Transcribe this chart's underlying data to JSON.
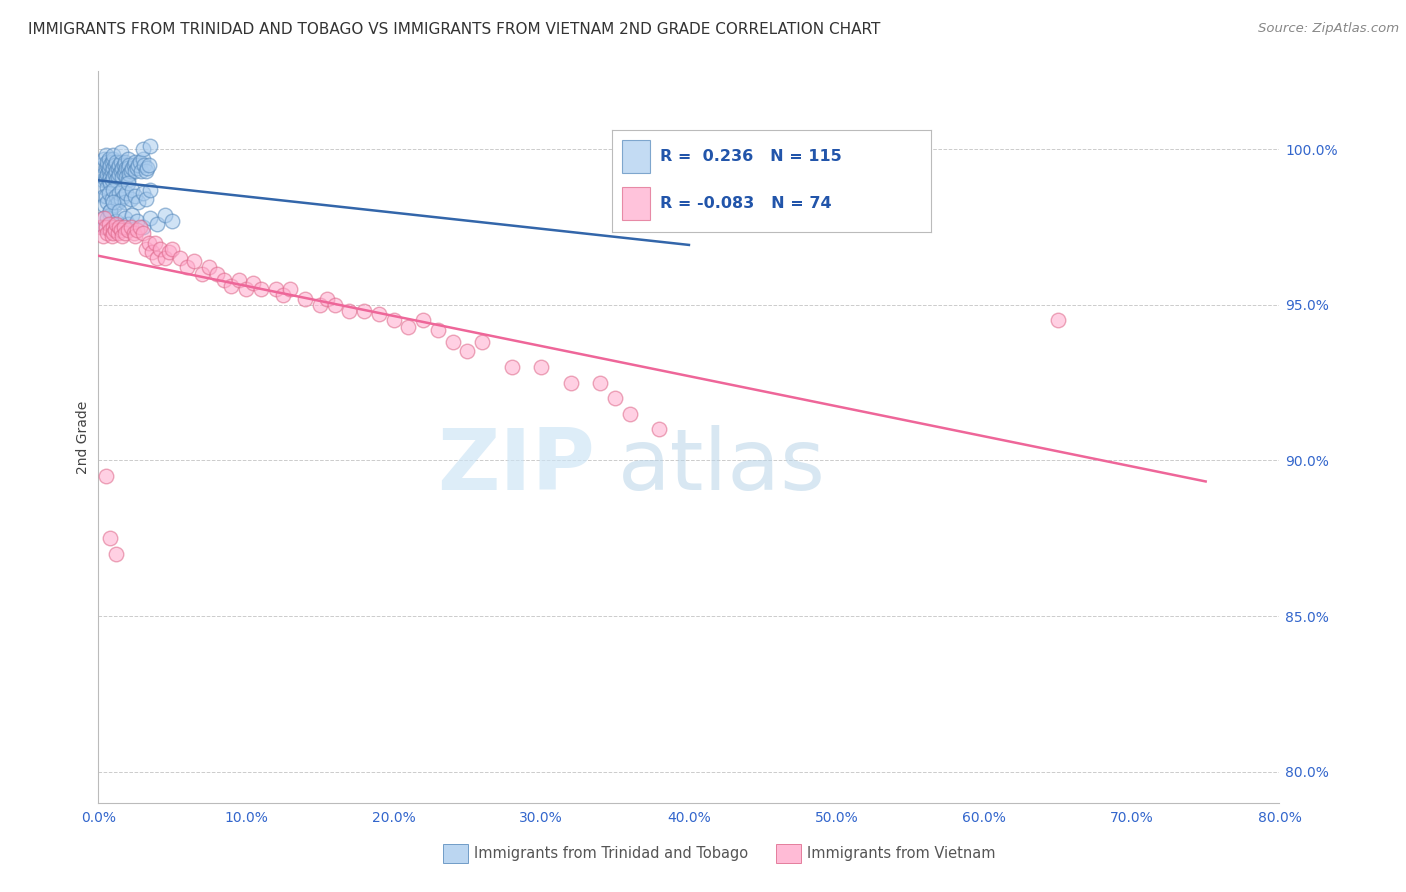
{
  "title": "IMMIGRANTS FROM TRINIDAD AND TOBAGO VS IMMIGRANTS FROM VIETNAM 2ND GRADE CORRELATION CHART",
  "source": "Source: ZipAtlas.com",
  "ylabel": "2nd Grade",
  "y_ticks": [
    80.0,
    85.0,
    90.0,
    95.0,
    100.0
  ],
  "x_ticks": [
    0,
    10,
    20,
    30,
    40,
    50,
    60,
    70,
    80
  ],
  "x_range": [
    0.0,
    80.0
  ],
  "y_range": [
    79.0,
    102.5
  ],
  "legend_blue_r": "0.236",
  "legend_blue_n": "115",
  "legend_pink_r": "-0.083",
  "legend_pink_n": "74",
  "blue_color": "#aaccee",
  "pink_color": "#ffaacc",
  "blue_edge_color": "#5588bb",
  "pink_edge_color": "#dd6688",
  "blue_line_color": "#3366aa",
  "pink_line_color": "#ee6699",
  "watermark_zip": "ZIP",
  "watermark_atlas": "atlas",
  "blue_scatter_x": [
    0.2,
    0.3,
    0.3,
    0.4,
    0.4,
    0.4,
    0.5,
    0.5,
    0.5,
    0.5,
    0.6,
    0.6,
    0.6,
    0.6,
    0.7,
    0.7,
    0.7,
    0.7,
    0.8,
    0.8,
    0.8,
    0.9,
    0.9,
    0.9,
    1.0,
    1.0,
    1.0,
    1.0,
    1.1,
    1.1,
    1.2,
    1.2,
    1.2,
    1.3,
    1.3,
    1.4,
    1.4,
    1.5,
    1.5,
    1.5,
    1.6,
    1.6,
    1.7,
    1.7,
    1.8,
    1.8,
    1.9,
    1.9,
    2.0,
    2.0,
    2.0,
    2.1,
    2.1,
    2.2,
    2.3,
    2.4,
    2.5,
    2.5,
    2.6,
    2.7,
    2.8,
    2.9,
    3.0,
    3.0,
    3.1,
    3.2,
    3.3,
    3.4,
    3.5,
    0.3,
    0.4,
    0.5,
    0.6,
    0.7,
    0.8,
    0.8,
    0.9,
    1.0,
    1.1,
    1.2,
    1.3,
    1.4,
    1.5,
    1.6,
    1.7,
    1.8,
    1.9,
    2.0,
    2.2,
    2.3,
    2.5,
    2.7,
    3.0,
    3.2,
    3.5,
    0.4,
    0.6,
    0.8,
    1.0,
    1.2,
    1.4,
    1.6,
    1.8,
    2.0,
    2.3,
    2.6,
    3.0,
    3.5,
    4.0,
    4.5,
    5.0
  ],
  "blue_scatter_y": [
    99.5,
    99.0,
    98.8,
    99.2,
    98.5,
    99.7,
    99.4,
    99.1,
    99.8,
    99.0,
    99.5,
    99.2,
    98.8,
    99.6,
    99.3,
    99.0,
    99.7,
    99.4,
    99.1,
    99.5,
    98.9,
    99.3,
    99.6,
    99.0,
    99.4,
    99.7,
    99.1,
    99.8,
    99.2,
    99.5,
    99.3,
    99.6,
    99.0,
    99.4,
    99.1,
    99.5,
    99.2,
    99.6,
    99.3,
    99.9,
    99.4,
    99.1,
    99.5,
    99.2,
    99.6,
    99.3,
    99.4,
    99.1,
    99.7,
    99.4,
    99.0,
    99.5,
    99.2,
    99.3,
    99.4,
    99.5,
    99.6,
    99.3,
    99.4,
    99.5,
    99.6,
    99.3,
    99.7,
    100.0,
    99.5,
    99.3,
    99.4,
    99.5,
    100.1,
    97.8,
    98.2,
    98.5,
    98.3,
    98.6,
    98.0,
    97.9,
    98.4,
    98.7,
    98.2,
    98.5,
    98.3,
    98.6,
    98.4,
    98.7,
    98.5,
    98.3,
    98.6,
    98.9,
    98.4,
    98.7,
    98.5,
    98.3,
    98.6,
    98.4,
    98.7,
    97.5,
    97.8,
    98.0,
    98.3,
    97.7,
    98.0,
    97.5,
    97.8,
    97.6,
    97.9,
    97.7,
    97.5,
    97.8,
    97.6,
    97.9,
    97.7
  ],
  "pink_scatter_x": [
    0.2,
    0.3,
    0.4,
    0.5,
    0.6,
    0.7,
    0.8,
    0.9,
    1.0,
    1.0,
    1.1,
    1.2,
    1.3,
    1.4,
    1.5,
    1.6,
    1.7,
    1.8,
    2.0,
    2.2,
    2.4,
    2.5,
    2.6,
    2.8,
    3.0,
    3.2,
    3.4,
    3.6,
    3.8,
    4.0,
    4.2,
    4.5,
    4.8,
    5.0,
    5.5,
    6.0,
    6.5,
    7.0,
    7.5,
    8.0,
    8.5,
    9.0,
    9.5,
    10.0,
    10.5,
    11.0,
    12.0,
    12.5,
    13.0,
    14.0,
    15.0,
    15.5,
    16.0,
    17.0,
    18.0,
    19.0,
    20.0,
    21.0,
    22.0,
    23.0,
    24.0,
    25.0,
    26.0,
    28.0,
    30.0,
    32.0,
    34.0,
    35.0,
    36.0,
    38.0,
    65.0,
    0.5,
    0.8,
    1.2
  ],
  "pink_scatter_y": [
    97.5,
    97.2,
    97.8,
    97.5,
    97.3,
    97.6,
    97.4,
    97.2,
    97.5,
    97.3,
    97.4,
    97.6,
    97.3,
    97.5,
    97.4,
    97.2,
    97.5,
    97.3,
    97.4,
    97.5,
    97.3,
    97.2,
    97.4,
    97.5,
    97.3,
    96.8,
    97.0,
    96.7,
    97.0,
    96.5,
    96.8,
    96.5,
    96.7,
    96.8,
    96.5,
    96.2,
    96.4,
    96.0,
    96.2,
    96.0,
    95.8,
    95.6,
    95.8,
    95.5,
    95.7,
    95.5,
    95.5,
    95.3,
    95.5,
    95.2,
    95.0,
    95.2,
    95.0,
    94.8,
    94.8,
    94.7,
    94.5,
    94.3,
    94.5,
    94.2,
    93.8,
    93.5,
    93.8,
    93.0,
    93.0,
    92.5,
    92.5,
    92.0,
    91.5,
    91.0,
    94.5,
    89.5,
    87.5,
    87.0
  ]
}
